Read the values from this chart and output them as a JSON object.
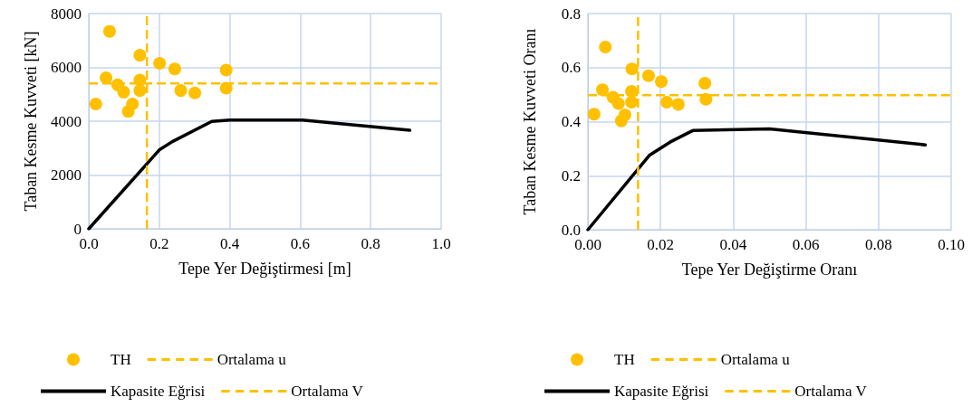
{
  "chart_data": [
    {
      "type": "scatter",
      "xlabel": "Tepe Yer Değiştirmesi [m]",
      "ylabel": "Taban Kesme Kuvveti [kN]",
      "xlim": [
        0,
        1
      ],
      "xticks": [
        {
          "value": 0,
          "label": "0.0"
        },
        {
          "value": 0.2,
          "label": "0.2"
        },
        {
          "value": 0.4,
          "label": "0.4"
        },
        {
          "value": 0.6,
          "label": "0.6"
        },
        {
          "value": 0.8,
          "label": "0.8"
        },
        {
          "value": 1,
          "label": "1.0"
        }
      ],
      "ylim": [
        0,
        8000
      ],
      "yticks": [
        0,
        2000,
        4000,
        6000,
        8000
      ],
      "grid": true,
      "legend": "bottom",
      "series": [
        {
          "name": "TH",
          "marker": "circle",
          "color": "#ffc000",
          "x": [
            0.02,
            0.059,
            0.145,
            0.201,
            0.244,
            0.39,
            0.39,
            0.049,
            0.082,
            0.099,
            0.145,
            0.145,
            0.261,
            0.301,
            0.112,
            0.124
          ],
          "values": [
            4640,
            7340,
            6450,
            6150,
            5940,
            5900,
            5230,
            5610,
            5350,
            5080,
            5530,
            5140,
            5140,
            5050,
            4360,
            4640
          ]
        },
        {
          "name": "Kapasite Eğrisi",
          "type": "line",
          "marker": "none",
          "line_style": "solid",
          "color": "#000000",
          "x": [
            0,
            0.2,
            0.237,
            0.349,
            0.4,
            0.606,
            0.911
          ],
          "values": [
            0,
            2930,
            3240,
            3990,
            4040,
            4040,
            3660
          ]
        }
      ],
      "ref_lines": [
        {
          "axis": "x",
          "value": 0.165,
          "label": "Ortalama u",
          "color": "#ffc000",
          "line_style": "dashed"
        },
        {
          "axis": "y",
          "value": 5400,
          "label": "Ortalama V",
          "color": "#ffc000",
          "line_style": "dashed"
        }
      ]
    },
    {
      "type": "scatter",
      "xlabel": "Tepe Yer Değiştirme Oranı",
      "ylabel": "Taban Kesme Kuvveti Oranı",
      "xlim": [
        0,
        0.1
      ],
      "xticks": [
        {
          "value": 0,
          "label": "0.00"
        },
        {
          "value": 0.02,
          "label": "0.02"
        },
        {
          "value": 0.04,
          "label": "0.04"
        },
        {
          "value": 0.06,
          "label": "0.06"
        },
        {
          "value": 0.08,
          "label": "0.08"
        },
        {
          "value": 0.1,
          "label": "0.10"
        }
      ],
      "ylim": [
        0,
        0.8
      ],
      "yticks": [
        {
          "value": 0,
          "label": "0.0"
        },
        {
          "value": 0.2,
          "label": "0.2"
        },
        {
          "value": 0.4,
          "label": "0.4"
        },
        {
          "value": 0.6,
          "label": "0.6"
        },
        {
          "value": 0.8,
          "label": "0.8"
        }
      ],
      "grid": true,
      "legend": "bottom",
      "series": [
        {
          "name": "TH",
          "marker": "circle",
          "color": "#ffc000",
          "x": [
            0.0017,
            0.0048,
            0.0121,
            0.0167,
            0.0202,
            0.0322,
            0.0325,
            0.004,
            0.0069,
            0.0084,
            0.012,
            0.012,
            0.0217,
            0.0249,
            0.0092,
            0.0102
          ],
          "values": [
            0.428,
            0.676,
            0.595,
            0.57,
            0.548,
            0.542,
            0.483,
            0.518,
            0.49,
            0.467,
            0.512,
            0.472,
            0.472,
            0.464,
            0.403,
            0.425
          ]
        },
        {
          "name": "Kapasite Eğrisi",
          "type": "line",
          "marker": "none",
          "line_style": "solid",
          "color": "#000000",
          "x": [
            0,
            0.0169,
            0.0227,
            0.0289,
            0.05,
            0.0929
          ],
          "values": [
            0,
            0.275,
            0.325,
            0.367,
            0.373,
            0.314
          ]
        }
      ],
      "ref_lines": [
        {
          "axis": "x",
          "value": 0.0138,
          "label": "Ortalama u",
          "color": "#ffc000",
          "line_style": "dashed"
        },
        {
          "axis": "y",
          "value": 0.498,
          "label": "Ortalama V",
          "color": "#ffc000",
          "line_style": "dashed"
        }
      ]
    }
  ]
}
